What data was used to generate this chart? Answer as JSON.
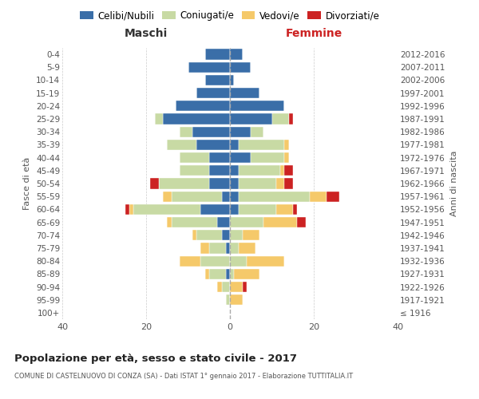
{
  "age_groups": [
    "100+",
    "95-99",
    "90-94",
    "85-89",
    "80-84",
    "75-79",
    "70-74",
    "65-69",
    "60-64",
    "55-59",
    "50-54",
    "45-49",
    "40-44",
    "35-39",
    "30-34",
    "25-29",
    "20-24",
    "15-19",
    "10-14",
    "5-9",
    "0-4"
  ],
  "birth_years": [
    "≤ 1916",
    "1917-1921",
    "1922-1926",
    "1927-1931",
    "1932-1936",
    "1937-1941",
    "1942-1946",
    "1947-1951",
    "1952-1956",
    "1957-1961",
    "1962-1966",
    "1967-1971",
    "1972-1976",
    "1977-1981",
    "1982-1986",
    "1987-1991",
    "1992-1996",
    "1997-2001",
    "2002-2006",
    "2007-2011",
    "2012-2016"
  ],
  "male": {
    "celibi": [
      0,
      0,
      0,
      1,
      0,
      1,
      2,
      3,
      7,
      2,
      5,
      5,
      5,
      8,
      9,
      16,
      13,
      8,
      6,
      10,
      6
    ],
    "coniugati": [
      0,
      1,
      2,
      4,
      7,
      4,
      6,
      11,
      16,
      12,
      12,
      7,
      7,
      7,
      3,
      2,
      0,
      0,
      0,
      0,
      0
    ],
    "vedovi": [
      0,
      0,
      1,
      1,
      5,
      2,
      1,
      1,
      1,
      2,
      0,
      0,
      0,
      0,
      0,
      0,
      0,
      0,
      0,
      0,
      0
    ],
    "divorziati": [
      0,
      0,
      0,
      0,
      0,
      0,
      0,
      0,
      1,
      0,
      2,
      0,
      0,
      0,
      0,
      0,
      0,
      0,
      0,
      0,
      0
    ]
  },
  "female": {
    "nubili": [
      0,
      0,
      0,
      0,
      0,
      0,
      0,
      0,
      2,
      2,
      2,
      2,
      5,
      2,
      5,
      10,
      13,
      7,
      1,
      5,
      3
    ],
    "coniugate": [
      0,
      0,
      0,
      1,
      4,
      2,
      3,
      8,
      9,
      17,
      9,
      10,
      8,
      11,
      3,
      4,
      0,
      0,
      0,
      0,
      0
    ],
    "vedove": [
      0,
      3,
      3,
      6,
      9,
      4,
      4,
      8,
      4,
      4,
      2,
      1,
      1,
      1,
      0,
      0,
      0,
      0,
      0,
      0,
      0
    ],
    "divorziate": [
      0,
      0,
      1,
      0,
      0,
      0,
      0,
      2,
      1,
      3,
      2,
      2,
      0,
      0,
      0,
      1,
      0,
      0,
      0,
      0,
      0
    ]
  },
  "colors": {
    "celibi": "#3a6ea8",
    "coniugati": "#c8daa4",
    "vedovi": "#f5c96a",
    "divorziati": "#cc2222"
  },
  "xlim": 40,
  "title": "Popolazione per età, sesso e stato civile - 2017",
  "subtitle": "COMUNE DI CASTELNUOVO DI CONZA (SA) - Dati ISTAT 1° gennaio 2017 - Elaborazione TUTTITALIA.IT",
  "ylabel": "Fasce di età",
  "ylabel_right": "Anni di nascita",
  "legend_labels": [
    "Celibi/Nubili",
    "Coniugati/e",
    "Vedovi/e",
    "Divorziati/e"
  ],
  "maschi_label": "Maschi",
  "femmine_label": "Femmine",
  "bg_color": "#ffffff"
}
